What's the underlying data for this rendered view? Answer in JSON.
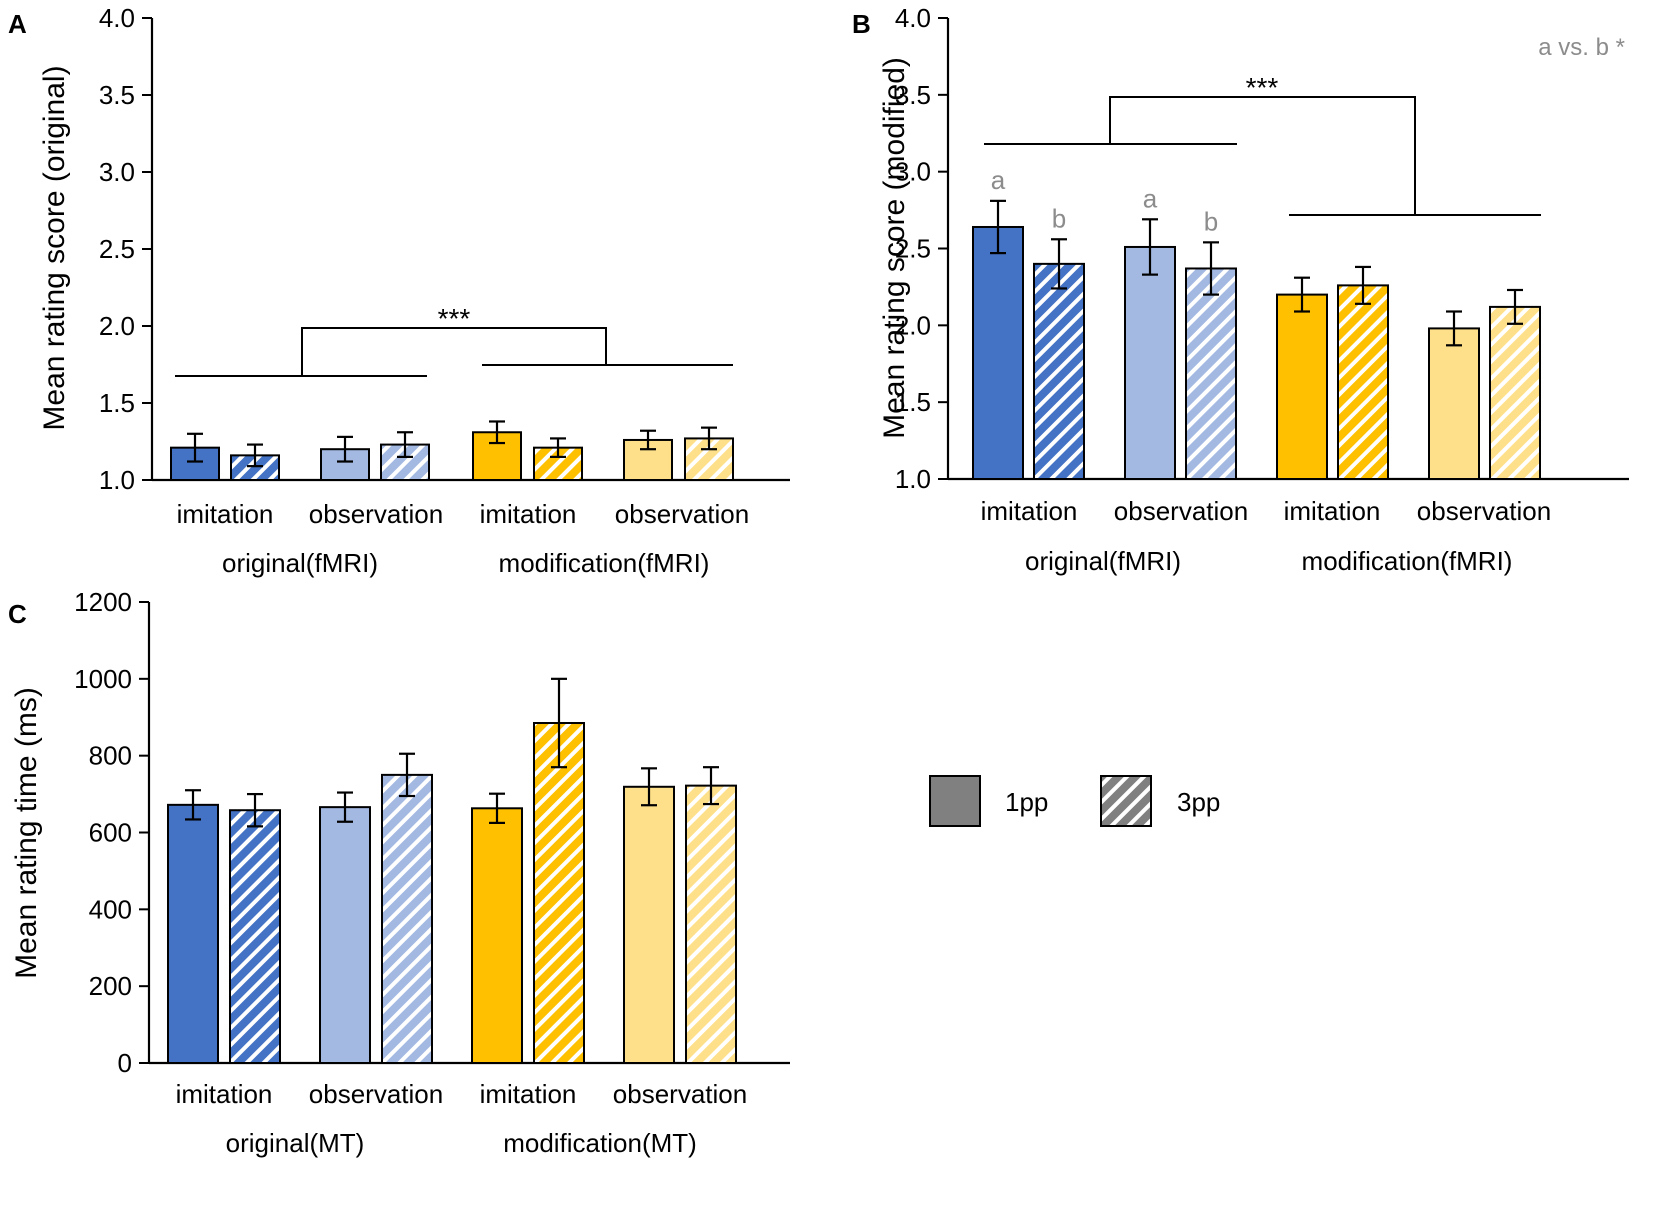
{
  "figure": {
    "legend": {
      "items": [
        {
          "label": "1pp",
          "style": "solid"
        },
        {
          "label": "3pp",
          "style": "hatched"
        }
      ]
    }
  },
  "colors": {
    "dark_blue": "#4472c4",
    "light_blue": "#a3b9e2",
    "dark_yellow": "#ffc000",
    "light_yellow": "#ffe08a",
    "legend_gray": "#808080",
    "axis": "#000000",
    "annotation_gray": "#8c8c8c"
  },
  "chart_data": [
    {
      "panel": "A",
      "type": "bar",
      "ylabel": "Mean rating score (original)",
      "ylim": [
        1.0,
        4.0
      ],
      "yticks": [
        "1.0",
        "1.5",
        "2.0",
        "2.5",
        "3.0",
        "3.5",
        "4.0"
      ],
      "grid": false,
      "categories": [
        "imitation",
        "observation",
        "imitation",
        "observation"
      ],
      "groups": [
        "original(fMRI)",
        "modification(fMRI)"
      ],
      "series": [
        {
          "name": "1pp",
          "values": [
            1.21,
            1.2,
            1.31,
            1.26
          ],
          "errors": [
            0.09,
            0.08,
            0.07,
            0.06
          ]
        },
        {
          "name": "3pp",
          "values": [
            1.16,
            1.23,
            1.21,
            1.27
          ],
          "errors": [
            0.07,
            0.08,
            0.06,
            0.07
          ]
        }
      ],
      "annotations": [
        {
          "label": "***",
          "between": "original(fMRI) vs modification(fMRI)"
        }
      ]
    },
    {
      "panel": "B",
      "type": "bar",
      "ylabel": "Mean rating score (modified)",
      "ylim": [
        1.0,
        4.0
      ],
      "yticks": [
        "1.0",
        "1.5",
        "2.0",
        "2.5",
        "3.0",
        "3.5",
        "4.0"
      ],
      "grid": false,
      "categories": [
        "imitation",
        "observation",
        "imitation",
        "observation"
      ],
      "groups": [
        "original(fMRI)",
        "modification(fMRI)"
      ],
      "series": [
        {
          "name": "1pp",
          "values": [
            2.64,
            2.51,
            2.2,
            1.98
          ],
          "errors": [
            0.17,
            0.18,
            0.11,
            0.11
          ]
        },
        {
          "name": "3pp",
          "values": [
            2.4,
            2.37,
            2.26,
            2.12
          ],
          "errors": [
            0.16,
            0.17,
            0.12,
            0.11
          ]
        }
      ],
      "letters": [
        "a",
        "b",
        "a",
        "b"
      ],
      "annotations": [
        {
          "label": "***",
          "between": "original(fMRI) vs modification(fMRI)"
        }
      ],
      "note": "a vs. b *"
    },
    {
      "panel": "C",
      "type": "bar",
      "ylabel": "Mean rating time (ms)",
      "ylim": [
        0,
        1200
      ],
      "yticks": [
        "0",
        "200",
        "400",
        "600",
        "800",
        "1000",
        "1200"
      ],
      "grid": false,
      "categories": [
        "imitation",
        "observation",
        "imitation",
        "observation"
      ],
      "groups": [
        "original(MT)",
        "modification(MT)"
      ],
      "series": [
        {
          "name": "1pp",
          "values": [
            672,
            666,
            663,
            719
          ],
          "errors": [
            38,
            38,
            38,
            48
          ]
        },
        {
          "name": "3pp",
          "values": [
            658,
            750,
            885,
            722
          ],
          "errors": [
            42,
            55,
            115,
            48
          ]
        }
      ]
    }
  ]
}
